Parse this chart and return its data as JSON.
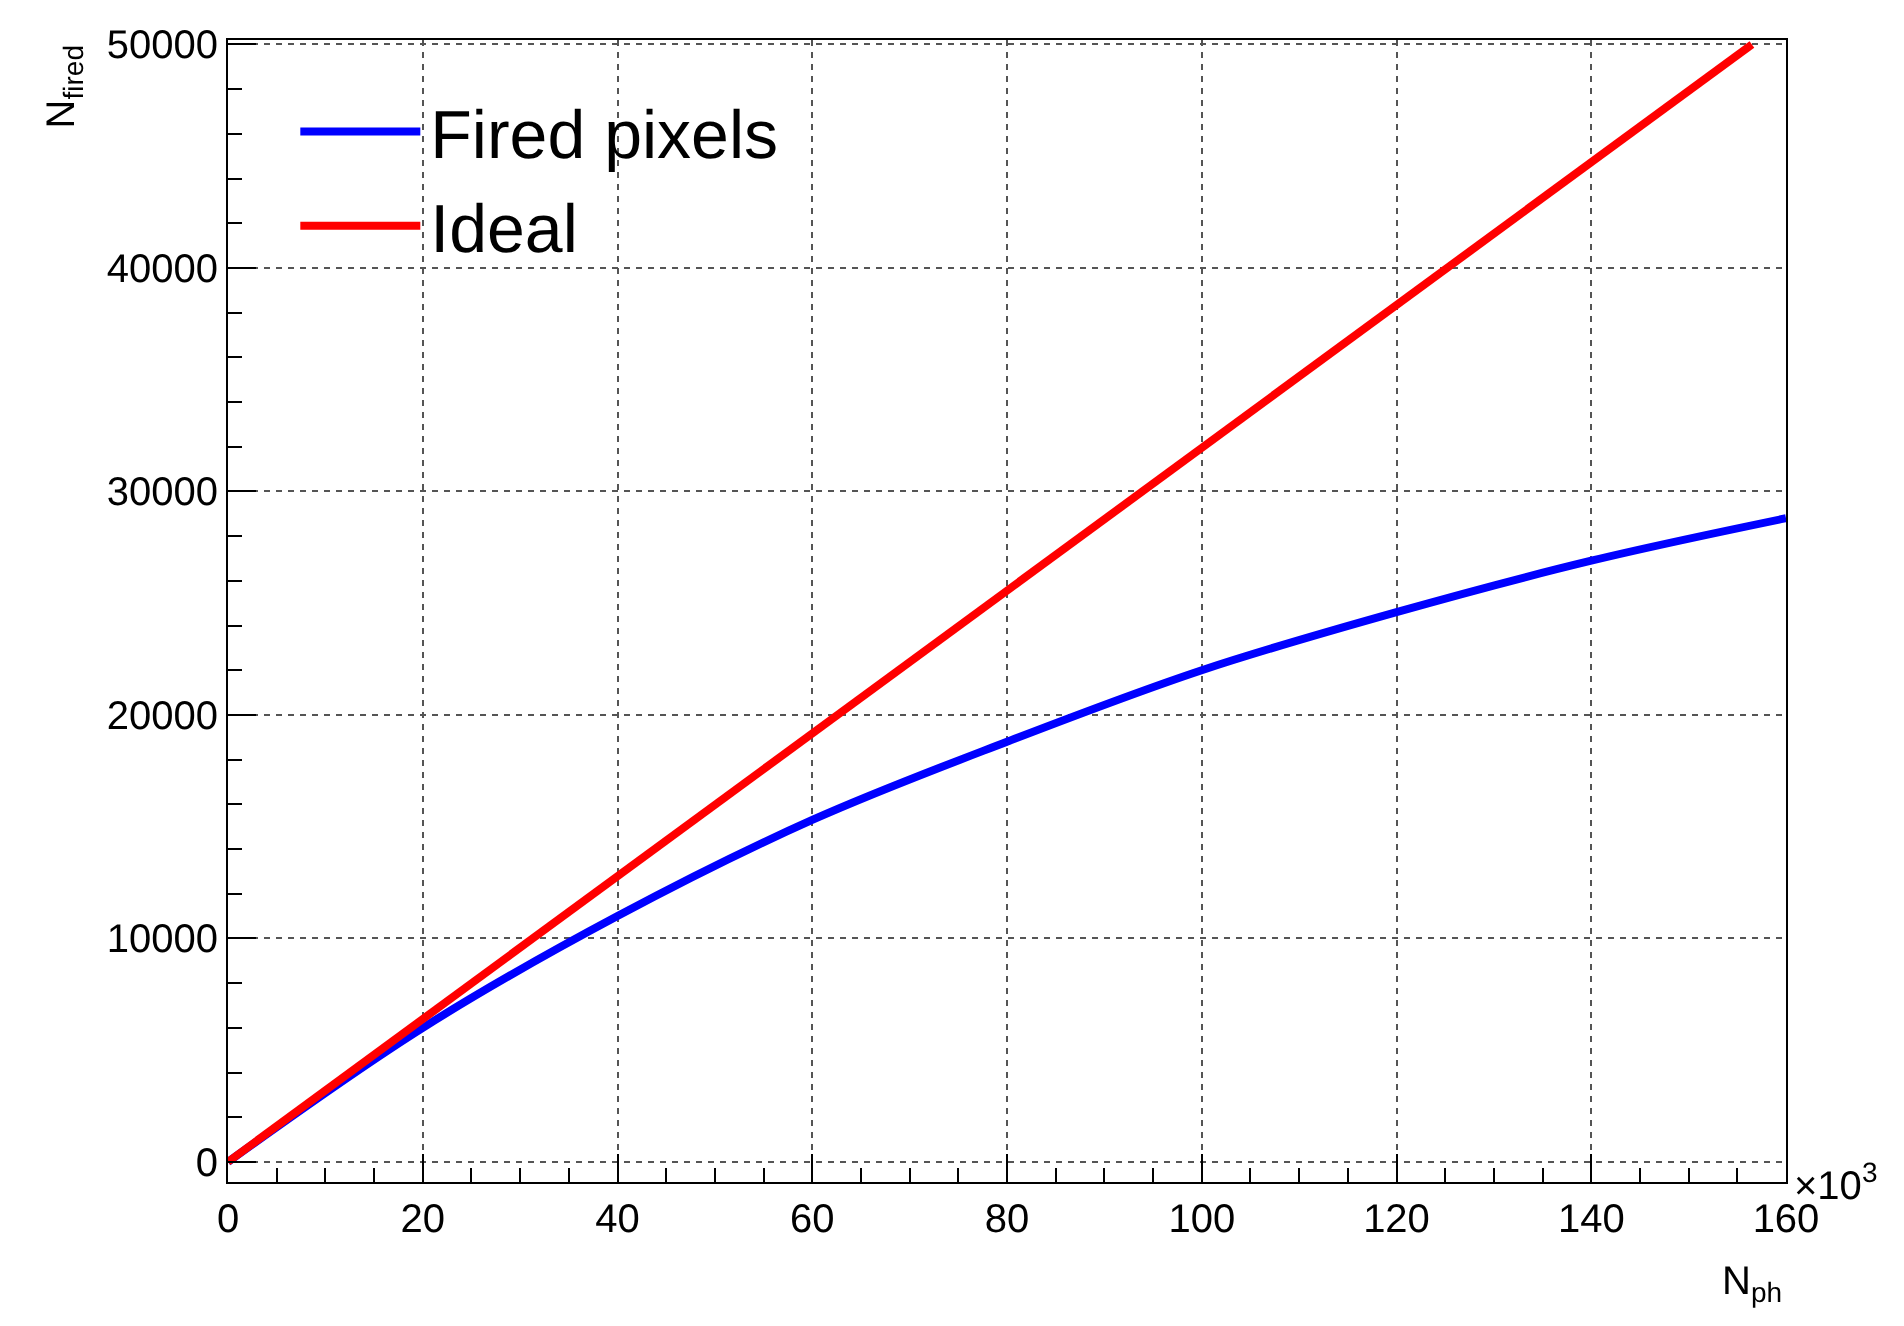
{
  "chart_data": {
    "type": "line",
    "xlabel": "N$_{ph}$",
    "ylabel": "N$_{fired}$",
    "xlim": [
      0,
      160
    ],
    "ylim": [
      -900,
      50200
    ],
    "xticks": [
      0,
      20,
      40,
      60,
      80,
      100,
      120,
      140,
      160
    ],
    "yticks": [
      0,
      10000,
      20000,
      30000,
      40000,
      50000
    ],
    "series": [
      {
        "name": "Fired pixels",
        "color": "#0000ff",
        "x": [
          0,
          20,
          40,
          60,
          80,
          100,
          120,
          140,
          160
        ],
        "values": [
          0,
          6000,
          11000,
          15300,
          18800,
          22000,
          24600,
          26900,
          28800
        ]
      },
      {
        "name": "Ideal",
        "color": "#ff0000",
        "x": [
          0,
          156.5
        ],
        "values": [
          0,
          50000
        ]
      }
    ],
    "annotations": [
      "×10$^{3}$"
    ],
    "grid": true,
    "legend": "top left",
    "marker": "none",
    "line_style": "solid"
  }
}
